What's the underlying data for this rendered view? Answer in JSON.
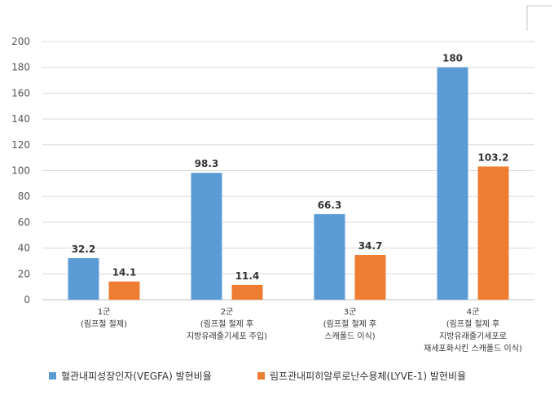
{
  "chart_data": {
    "type": "bar",
    "categories": [
      [
        "1군",
        "(림프절 절제)"
      ],
      [
        "2군",
        "(림프절 절제 후",
        "지방유래줄기세포 주입)"
      ],
      [
        "3군",
        "(림프절 절제 후",
        "스캐폴드 이식)"
      ],
      [
        "4군",
        "(림프절 절제 후",
        "지방유래줄기세포로",
        "재세포화시킨 스캐폴드 이식)"
      ]
    ],
    "series": [
      {
        "name": "혈관내피성장인자(VEGFA) 발현비율",
        "color": "#5b9bd5",
        "values": [
          32.2,
          98.3,
          66.3,
          180
        ],
        "labels": [
          "32.2",
          "98.3",
          "66.3",
          "180"
        ]
      },
      {
        "name": "림프관내피히알루로난수용체(LYVE-1) 발현비율",
        "color": "#ed7d31",
        "values": [
          14.1,
          11.4,
          34.7,
          103.2
        ],
        "labels": [
          "14.1",
          "11.4",
          "34.7",
          "103.2"
        ]
      }
    ],
    "y_ticks": [
      "0",
      "20",
      "40",
      "60",
      "80",
      "100",
      "120",
      "140",
      "160",
      "180",
      "200"
    ],
    "ylim": [
      0,
      200
    ],
    "grid": true,
    "legend_position": "bottom-left"
  }
}
